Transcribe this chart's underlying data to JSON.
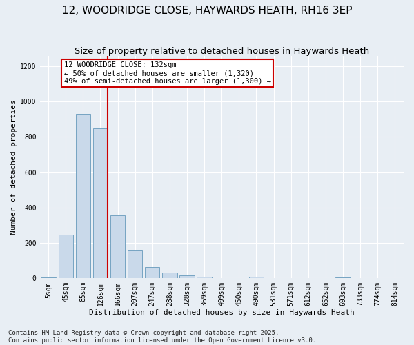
{
  "title": "12, WOODRIDGE CLOSE, HAYWARDS HEATH, RH16 3EP",
  "subtitle": "Size of property relative to detached houses in Haywards Heath",
  "xlabel": "Distribution of detached houses by size in Haywards Heath",
  "ylabel": "Number of detached properties",
  "categories": [
    "5sqm",
    "45sqm",
    "85sqm",
    "126sqm",
    "166sqm",
    "207sqm",
    "247sqm",
    "288sqm",
    "328sqm",
    "369sqm",
    "409sqm",
    "450sqm",
    "490sqm",
    "531sqm",
    "571sqm",
    "612sqm",
    "652sqm",
    "693sqm",
    "733sqm",
    "774sqm",
    "814sqm"
  ],
  "values": [
    5,
    248,
    930,
    848,
    358,
    157,
    65,
    32,
    18,
    10,
    0,
    0,
    10,
    0,
    0,
    0,
    0,
    5,
    0,
    0,
    0
  ],
  "bar_color": "#c9d9ea",
  "bar_edge_color": "#6699bb",
  "vline_x_index": 3,
  "vline_color": "#cc0000",
  "annotation_text": "12 WOODRIDGE CLOSE: 132sqm\n← 50% of detached houses are smaller (1,320)\n49% of semi-detached houses are larger (1,300) →",
  "annotation_box_color": "#ffffff",
  "annotation_box_edge": "#cc0000",
  "ylim": [
    0,
    1260
  ],
  "yticks": [
    0,
    200,
    400,
    600,
    800,
    1000,
    1200
  ],
  "footer": "Contains HM Land Registry data © Crown copyright and database right 2025.\nContains public sector information licensed under the Open Government Licence v3.0.",
  "bg_color": "#e8eef4",
  "plot_bg_color": "#e8eef4",
  "title_fontsize": 11,
  "subtitle_fontsize": 9.5,
  "axis_label_fontsize": 8,
  "tick_fontsize": 7,
  "annotation_fontsize": 7.5,
  "footer_fontsize": 6.5
}
